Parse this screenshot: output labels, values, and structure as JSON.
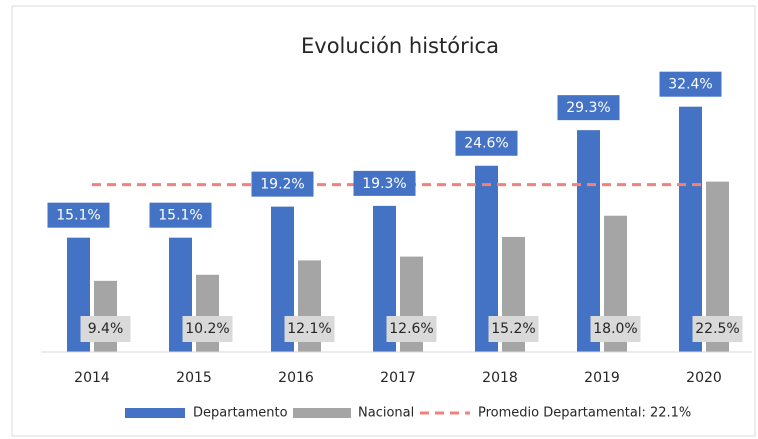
{
  "chart_data": {
    "type": "bar",
    "title": "Evolución histórica",
    "categories": [
      "2014",
      "2015",
      "2016",
      "2017",
      "2018",
      "2019",
      "2020"
    ],
    "series": [
      {
        "name": "Departamento",
        "color": "#4472c4",
        "values": [
          15.1,
          15.1,
          19.2,
          19.3,
          24.6,
          29.3,
          32.4
        ],
        "value_labels": [
          "15.1%",
          "15.1%",
          "19.2%",
          "19.3%",
          "24.6%",
          "29.3%",
          "32.4%"
        ]
      },
      {
        "name": "Nacional",
        "color": "#a5a5a5",
        "values": [
          9.4,
          10.2,
          12.1,
          12.6,
          15.2,
          18.0,
          22.5
        ],
        "value_labels": [
          "9.4%",
          "10.2%",
          "12.1%",
          "12.6%",
          "15.2%",
          "18.0%",
          "22.5%"
        ]
      }
    ],
    "average": {
      "name": "Promedio Departamental: 22.1%",
      "value": 22.1,
      "color": "#f4807c"
    },
    "ylim": [
      0,
      35
    ]
  }
}
